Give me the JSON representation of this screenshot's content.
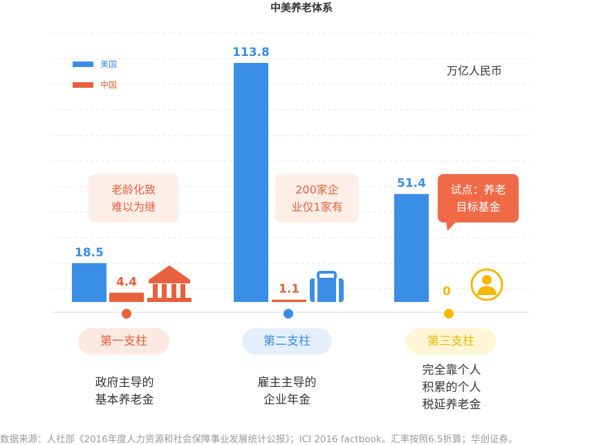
{
  "header": {
    "title": "中美养老体系"
  },
  "unit_label": "万亿人民币",
  "legend": [
    {
      "label": "美国",
      "color": "#3a8ee6"
    },
    {
      "label": "中国",
      "color": "#e8603c"
    }
  ],
  "colors": {
    "us": "#3a8ee6",
    "cn": "#e8603c",
    "pillar3": "#f5b800",
    "grid": "#e6e6e6"
  },
  "chart_data": {
    "type": "bar",
    "title": "中美养老体系",
    "ylabel": "万亿人民币",
    "categories": [
      "第一支柱",
      "第二支柱",
      "第三支柱"
    ],
    "series": [
      {
        "name": "美国",
        "values": [
          18.5,
          113.8,
          51.4
        ]
      },
      {
        "name": "中国",
        "values": [
          4.4,
          1.1,
          0
        ]
      }
    ],
    "value_labels": [
      {
        "us": "18.5",
        "cn": "4.4"
      },
      {
        "us": "113.8",
        "cn": "1.1"
      },
      {
        "us": "51.4",
        "cn": "0"
      }
    ],
    "grid": true,
    "legend_position": "top-left"
  },
  "pillars": [
    {
      "label": "第一支柱",
      "desc": [
        "政府主导的",
        "基本养老金"
      ],
      "callout": [
        "老龄化致",
        "难以为继"
      ],
      "icon": "bank-icon"
    },
    {
      "label": "第二支柱",
      "desc": [
        "雇主主导的",
        "企业年金"
      ],
      "callout": [
        "200家企",
        "业仅1家有"
      ],
      "icon": "briefcase-icon"
    },
    {
      "label": "第三支柱",
      "desc": [
        "完全靠个人",
        "积累的个人",
        "税延养老金"
      ],
      "callout": [
        "试点：养老",
        "目标基金"
      ],
      "icon": "person-icon"
    }
  ],
  "source": "数据来源：人社部《2016年度人力资源和社会保障事业发展统计公报》；ICI 2016 factbook。汇率按照6.5折算；华创证券。"
}
